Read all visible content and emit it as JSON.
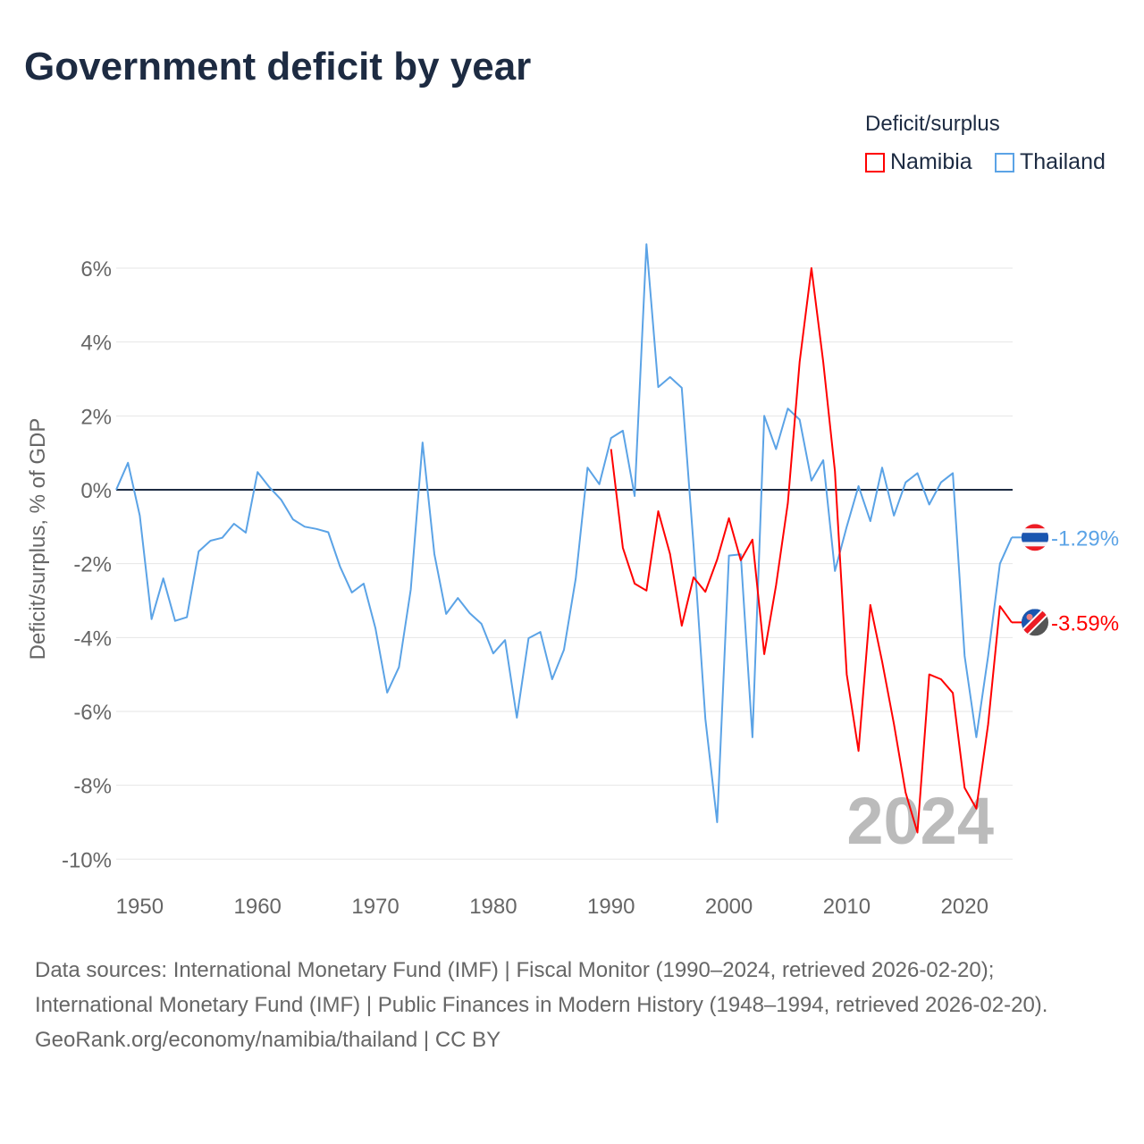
{
  "title": "Government deficit by year",
  "legend": {
    "title": "Deficit/surplus",
    "items": [
      {
        "name": "Namibia",
        "color": "#ff0000"
      },
      {
        "name": "Thailand",
        "color": "#5ba3e6"
      }
    ]
  },
  "year_label": "2024",
  "footer": {
    "sources": "Data sources: International Monetary Fund (IMF) | Fiscal Monitor (1990–2024, retrieved 2026-02-20); International Monetary Fund (IMF) | Public Finances in Modern History (1948–1994, retrieved 2026-02-20).",
    "credit": "GeoRank.org/economy/namibia/thailand | CC BY"
  },
  "chart_data": {
    "type": "line",
    "title": "Government deficit by year",
    "xlabel": "",
    "ylabel": "Deficit/surplus, % of GDP",
    "xlim": [
      1948,
      2024
    ],
    "ylim": [
      -10,
      6.5
    ],
    "xticks": [
      1950,
      1960,
      1970,
      1980,
      1990,
      2000,
      2010,
      2020
    ],
    "xtick_labels": [
      "1950",
      "1960",
      "1970",
      "1980",
      "1990",
      "2000",
      "2010",
      "2020"
    ],
    "yticks": [
      6,
      4,
      2,
      0,
      -2,
      -4,
      -6,
      -8,
      -10
    ],
    "ytick_labels": [
      "6%",
      "4%",
      "2%",
      "0%",
      "-2%",
      "-4%",
      "-6%",
      "-8%",
      "-10%"
    ],
    "grid": true,
    "legend_position": "top-right",
    "series": [
      {
        "name": "Thailand",
        "color": "#5ba3e6",
        "end_label": "-1.29%",
        "start_year": 1948,
        "values": [
          0,
          0.73,
          -0.7,
          -3.5,
          -2.4,
          -3.55,
          -3.45,
          -1.67,
          -1.38,
          -1.3,
          -0.92,
          -1.16,
          0.48,
          0.07,
          -0.27,
          -0.8,
          -1.0,
          -1.06,
          -1.15,
          -2.08,
          -2.78,
          -2.54,
          -3.75,
          -5.49,
          -4.8,
          -2.7,
          1.28,
          -1.74,
          -3.36,
          -2.93,
          -3.34,
          -3.63,
          -4.43,
          -4.07,
          -6.17,
          -4.02,
          -3.85,
          -5.13,
          -4.33,
          -2.4,
          0.6,
          0.15,
          1.4,
          1.6,
          -0.17,
          6.65,
          2.78,
          3.05,
          2.76,
          -1.5,
          -6.2,
          -9.0,
          -1.78,
          -1.75,
          -6.7,
          2.0,
          1.1,
          2.2,
          1.9,
          0.25,
          0.8,
          -2.2,
          -1.0,
          0.1,
          -0.85,
          0.6,
          -0.7,
          0.2,
          0.45,
          -0.4,
          0.2,
          0.45,
          -4.5,
          -6.7,
          -4.5,
          -2.0,
          -1.29
        ]
      },
      {
        "name": "Namibia",
        "color": "#ff0000",
        "end_label": "-3.59%",
        "start_year": 1990,
        "values": [
          1.1,
          -1.57,
          -2.54,
          -2.73,
          -0.58,
          -1.74,
          -3.68,
          -2.37,
          -2.76,
          -1.89,
          -0.77,
          -1.91,
          -1.35,
          -4.45,
          -2.59,
          -0.36,
          3.46,
          6.0,
          3.46,
          0.5,
          -5.0,
          -7.07,
          -3.12,
          -4.65,
          -6.34,
          -8.2,
          -9.28,
          -5.0,
          -5.13,
          -5.5,
          -8.07,
          -8.63,
          -6.35,
          -3.15,
          -3.59
        ]
      }
    ]
  }
}
